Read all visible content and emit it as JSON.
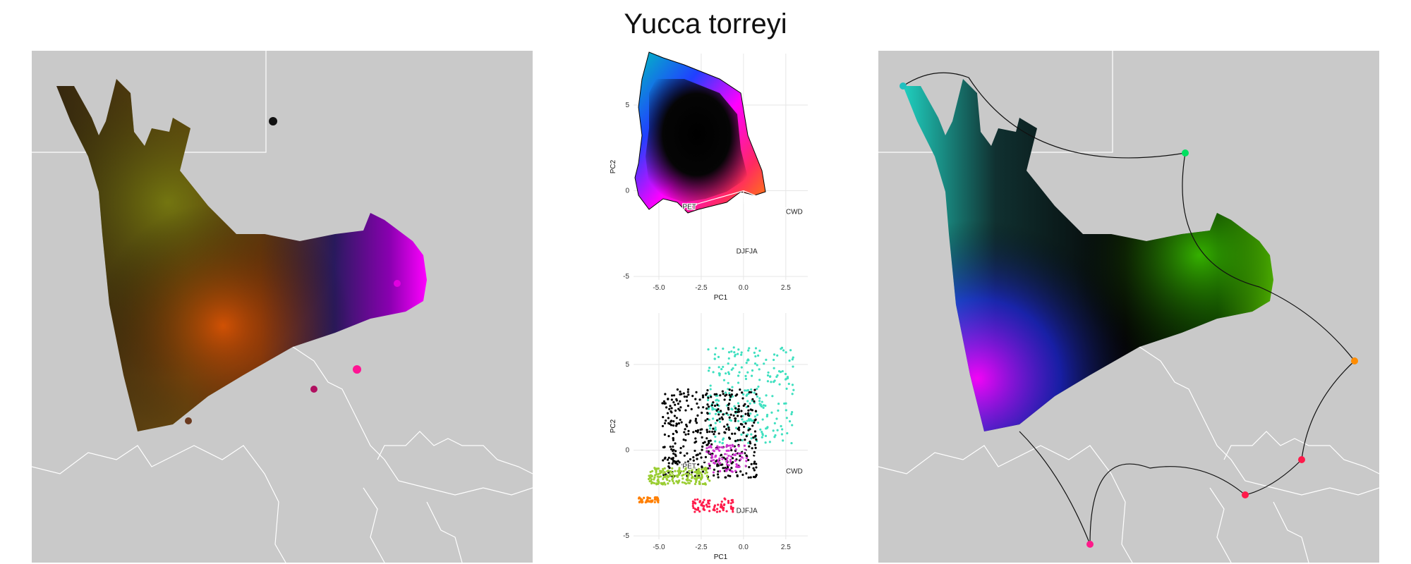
{
  "title": "Yucca torreyi",
  "colors": {
    "map_background": "#c9c9c9",
    "border_lines": "#ffffff"
  },
  "chart_data": [
    {
      "type": "map",
      "panel": "left",
      "points": [
        {
          "color": "#111111"
        },
        {
          "color": "#e000e0"
        },
        {
          "color": "#ff1493"
        },
        {
          "color": "#b01060"
        },
        {
          "color": "#6b3a1e"
        }
      ]
    },
    {
      "type": "scatter",
      "panel": "top-middle",
      "xlabel": "PC1",
      "ylabel": "PC2",
      "xticks": [
        "-5.0",
        "-2.5",
        "0.0",
        "2.5"
      ],
      "yticks": [
        "5",
        "0",
        "-5"
      ],
      "xlim": [
        -6.5,
        3.8
      ],
      "ylim": [
        -5.2,
        8
      ],
      "vectors": [
        {
          "label": "PET",
          "x": -3.2,
          "y": -0.9
        },
        {
          "label": "CWD",
          "x": 3.0,
          "y": -1.2
        },
        {
          "label": "DJFJA",
          "x": 0.2,
          "y": -3.5
        }
      ]
    },
    {
      "type": "scatter",
      "panel": "bottom-middle",
      "xlabel": "PC1",
      "ylabel": "PC2",
      "xticks": [
        "-5.0",
        "-2.5",
        "0.0",
        "2.5"
      ],
      "yticks": [
        "5",
        "0",
        "-5"
      ],
      "xlim": [
        -6.5,
        3.8
      ],
      "ylim": [
        -5.2,
        8
      ],
      "vectors": [
        {
          "label": "PET",
          "x": -3.2,
          "y": -0.9
        },
        {
          "label": "CWD",
          "x": 3.0,
          "y": -1.2
        },
        {
          "label": "DJFJA",
          "x": 0.2,
          "y": -3.5
        }
      ],
      "clusters": [
        {
          "color": "#40e0c0",
          "cx": 0.5,
          "cy": 3.2
        },
        {
          "color": "#000000",
          "cx": -2.0,
          "cy": 1.0
        },
        {
          "color": "#9acd32",
          "cx": -3.8,
          "cy": -1.5
        },
        {
          "color": "#ff1a4a",
          "cx": -1.8,
          "cy": -3.2
        },
        {
          "color": "#ff7f00",
          "cx": -5.6,
          "cy": -2.9
        },
        {
          "color": "#cc33cc",
          "cx": -1.0,
          "cy": -0.5
        }
      ]
    },
    {
      "type": "map",
      "panel": "right",
      "points": [
        {
          "color": "#00e060"
        },
        {
          "color": "#ff8c00"
        },
        {
          "color": "#ff1a4a"
        },
        {
          "color": "#ff1a4a"
        },
        {
          "color": "#ff1a8a"
        },
        {
          "color": "#20c0c0"
        }
      ]
    }
  ]
}
